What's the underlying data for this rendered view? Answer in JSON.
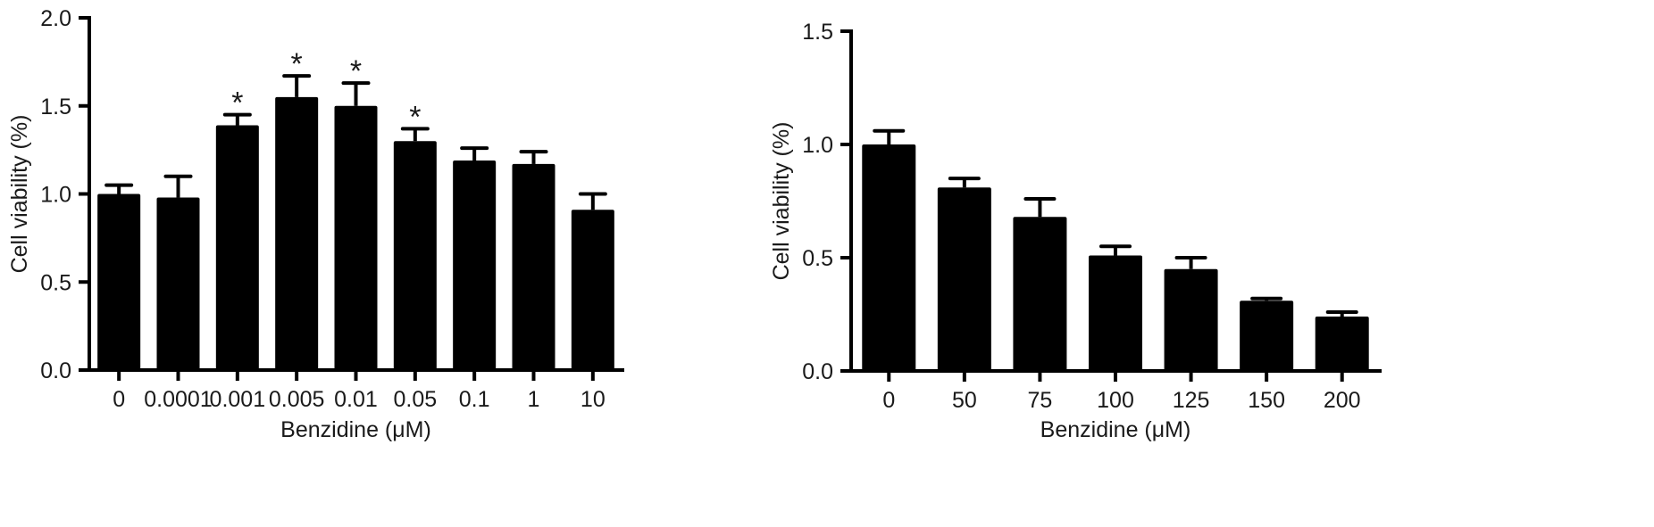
{
  "chart_data": [
    {
      "type": "bar",
      "title": "",
      "xlabel": "Benzidine (μM)",
      "ylabel": "Cell viability (%)",
      "ylim": [
        0,
        2.0
      ],
      "yticks": [
        "0.0",
        "0.5",
        "1.0",
        "1.5",
        "2.0"
      ],
      "grid": false,
      "bar_color": "#000000",
      "categories": [
        "0",
        "0.0001",
        "0.001",
        "0.005",
        "0.01",
        "0.05",
        "0.1",
        "1",
        "10"
      ],
      "values": [
        1.0,
        0.98,
        1.39,
        1.55,
        1.5,
        1.3,
        1.19,
        1.17,
        0.91
      ],
      "errors": [
        0.05,
        0.12,
        0.06,
        0.12,
        0.13,
        0.07,
        0.07,
        0.07,
        0.09
      ],
      "significance": [
        "",
        "",
        "*",
        "*",
        "*",
        "*",
        "",
        "",
        ""
      ]
    },
    {
      "type": "bar",
      "title": "",
      "xlabel": "Benzidine (μM)",
      "ylabel": "Cell viability (%)",
      "ylim": [
        0,
        1.5
      ],
      "yticks": [
        "0.0",
        "0.5",
        "1.0",
        "1.5"
      ],
      "grid": false,
      "bar_color": "#000000",
      "categories": [
        "0",
        "50",
        "75",
        "100",
        "125",
        "150",
        "200"
      ],
      "values": [
        1.0,
        0.81,
        0.68,
        0.51,
        0.45,
        0.31,
        0.24
      ],
      "errors": [
        0.06,
        0.04,
        0.08,
        0.04,
        0.05,
        0.01,
        0.02
      ],
      "significance": [
        "",
        "",
        "",
        "",
        "",
        "",
        ""
      ]
    }
  ]
}
